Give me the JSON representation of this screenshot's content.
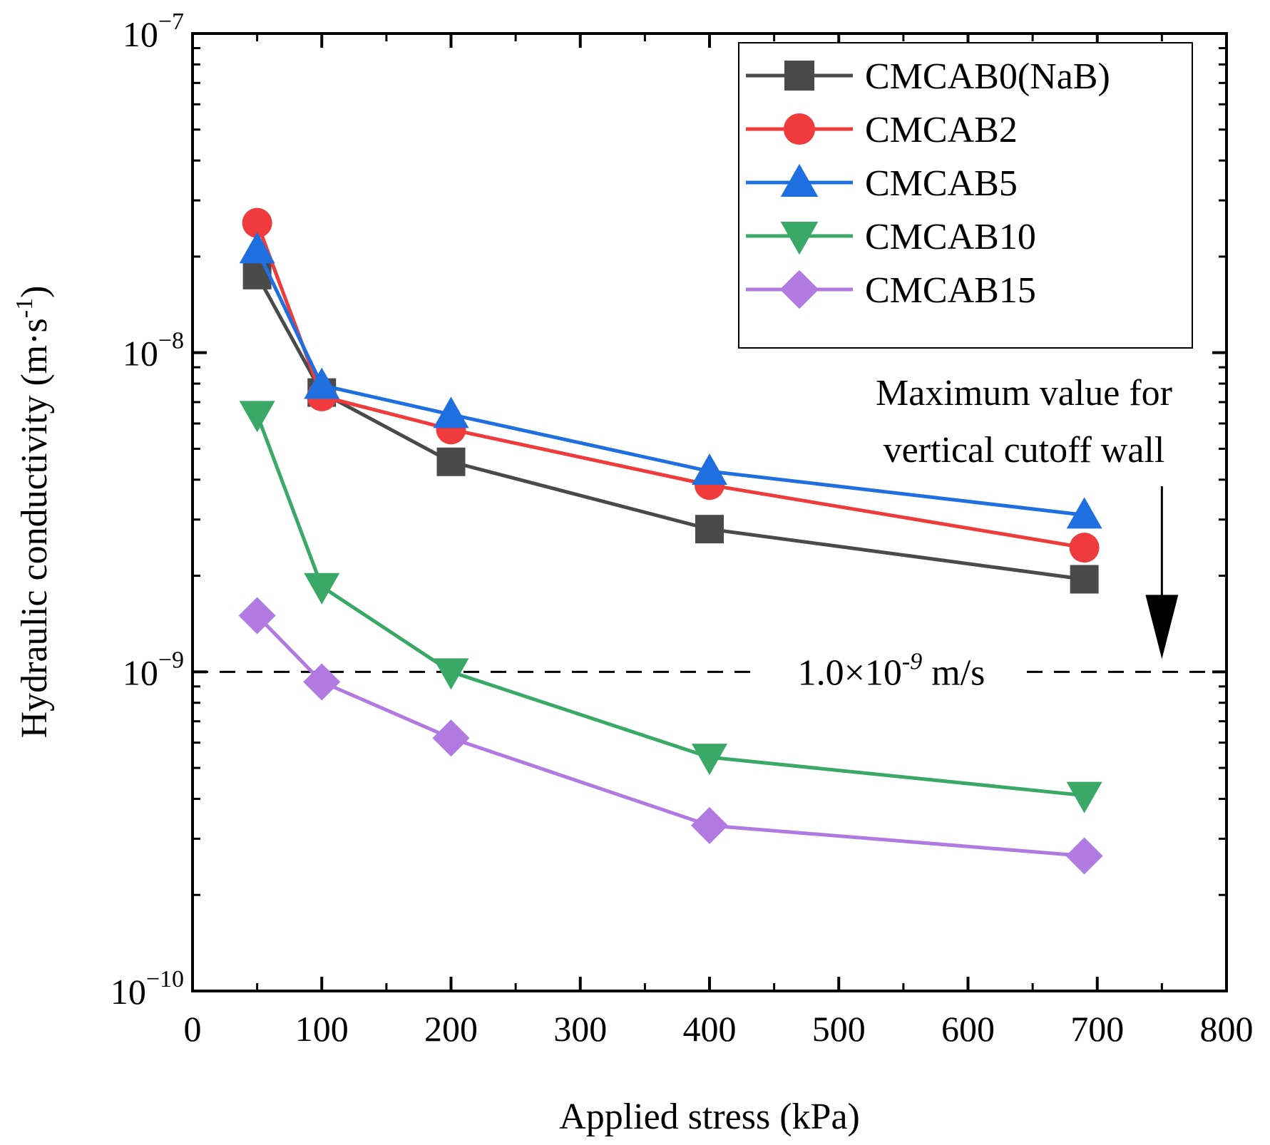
{
  "chart_data": {
    "type": "line",
    "title": "",
    "xlabel": "Applied stress (kPa)",
    "ylabel_main": "Hydraulic conductivity (m·s",
    "ylabel_sup": "-1",
    "ylabel_close": ")",
    "xlim": [
      0,
      800
    ],
    "ylim": [
      1e-10,
      1e-07
    ],
    "yscale": "log",
    "x_ticks": [
      {
        "value": 0,
        "label": "0"
      },
      {
        "value": 100,
        "label": "100"
      },
      {
        "value": 200,
        "label": "200"
      },
      {
        "value": 300,
        "label": "300"
      },
      {
        "value": 400,
        "label": "400"
      },
      {
        "value": 500,
        "label": "500"
      },
      {
        "value": 600,
        "label": "600"
      },
      {
        "value": 700,
        "label": "700"
      },
      {
        "value": 800,
        "label": "800"
      }
    ],
    "y_ticks": [
      {
        "value": 1e-10,
        "base": "10",
        "exp": "−10"
      },
      {
        "value": 1e-09,
        "base": "10",
        "exp": "−9"
      },
      {
        "value": 1e-08,
        "base": "10",
        "exp": "−8"
      },
      {
        "value": 1e-07,
        "base": "10",
        "exp": "−7"
      }
    ],
    "legend_position": "top-right",
    "series": [
      {
        "name": "CMCAB0(NaB)",
        "color": "#4a4a4a",
        "marker": "square",
        "x": [
          50,
          100,
          200,
          400,
          690
        ],
        "y": [
          1.75e-08,
          7.5e-09,
          4.55e-09,
          2.8e-09,
          1.95e-09
        ]
      },
      {
        "name": "CMCAB2",
        "color": "#ef3b3b",
        "marker": "circle",
        "x": [
          50,
          100,
          200,
          400,
          690
        ],
        "y": [
          2.55e-08,
          7.3e-09,
          5.75e-09,
          3.85e-09,
          2.45e-09
        ]
      },
      {
        "name": "CMCAB5",
        "color": "#1f6fe0",
        "marker": "triangle-up",
        "x": [
          50,
          100,
          200,
          400,
          690
        ],
        "y": [
          2.1e-08,
          7.9e-09,
          6.4e-09,
          4.25e-09,
          3.1e-09
        ]
      },
      {
        "name": "CMCAB10",
        "color": "#3aa867",
        "marker": "triangle-down",
        "x": [
          50,
          100,
          200,
          400,
          690
        ],
        "y": [
          6.4e-09,
          1.85e-09,
          1e-09,
          5.4e-10,
          4.1e-10
        ]
      },
      {
        "name": "CMCAB15",
        "color": "#b07ae0",
        "marker": "diamond",
        "x": [
          50,
          100,
          200,
          400,
          690
        ],
        "y": [
          1.5e-09,
          9.3e-10,
          6.2e-10,
          3.3e-10,
          2.65e-10
        ]
      }
    ],
    "reference_line": {
      "value": 1e-09,
      "style": "dashed",
      "color": "#000000",
      "label_prefix": "1.0×10",
      "label_exp": "-9",
      "label_suffix": " m/s"
    },
    "annotations": {
      "max_line1": "Maximum value for",
      "max_line2": "vertical cutoff wall",
      "arrow_x": 750,
      "arrow_to": 1e-09
    }
  }
}
